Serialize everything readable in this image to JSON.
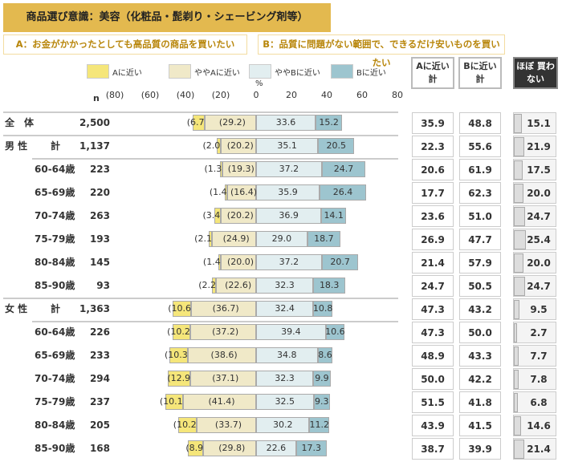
{
  "title": "商品選び意識：美容（化粧品・髭剃り・シェービング剤等）",
  "definition_a": "A：お金がかかったとしても高品質の商品を買いたい",
  "definition_b": "B：品質に問題がない範囲で、できるだけ安いものを買いたい",
  "columns": {
    "a_total": "Aに近い 計",
    "b_total": "Bに近い 計",
    "rarely_buy": "ほぼ 買わない"
  },
  "n_label": "n",
  "unit_label": "%",
  "colors": {
    "a": "#f5e67a",
    "slightly_a": "#f0e9c8",
    "slightly_b": "#e2eef0",
    "b": "#9dc5cf",
    "rarely": "#dddddd",
    "title_bg": "#e3b94f"
  },
  "chart_data": {
    "type": "bar",
    "orientation": "horizontal-diverging-stacked",
    "xlim": [
      -80,
      80
    ],
    "xticks": [
      "(80)",
      "(60)",
      "(40)",
      "(20)",
      "0",
      "20",
      "40",
      "60",
      "80"
    ],
    "legend": [
      "Aに近い",
      "ややAに近い",
      "ややBに近い",
      "Bに近い"
    ],
    "legend_placement": "top",
    "rows": [
      {
        "group": "全　体",
        "label": "",
        "n": "2,500",
        "a": 6.7,
        "sa": 29.2,
        "sb": 33.6,
        "b": 15.2,
        "a_total": "35.9",
        "b_total": "48.8",
        "rarely": 15.1
      },
      {
        "group": "男 性",
        "label": "計",
        "n": "1,137",
        "a": 2.0,
        "sa": 20.2,
        "sb": 35.1,
        "b": 20.5,
        "a_total": "22.3",
        "b_total": "55.6",
        "rarely": 21.9
      },
      {
        "group": "",
        "label": "60-64歳",
        "n": "223",
        "a": 1.3,
        "sa": 19.3,
        "sb": 37.2,
        "b": 24.7,
        "a_total": "20.6",
        "b_total": "61.9",
        "rarely": 17.5
      },
      {
        "group": "",
        "label": "65-69歳",
        "n": "220",
        "a": 1.4,
        "sa": 16.4,
        "sb": 35.9,
        "b": 26.4,
        "a_total": "17.7",
        "b_total": "62.3",
        "rarely": 20.0
      },
      {
        "group": "",
        "label": "70-74歳",
        "n": "263",
        "a": 3.4,
        "sa": 20.2,
        "sb": 36.9,
        "b": 14.1,
        "a_total": "23.6",
        "b_total": "51.0",
        "rarely": 24.7
      },
      {
        "group": "",
        "label": "75-79歳",
        "n": "193",
        "a": 2.1,
        "sa": 24.9,
        "sb": 29.0,
        "b": 18.7,
        "a_total": "26.9",
        "b_total": "47.7",
        "rarely": 25.4
      },
      {
        "group": "",
        "label": "80-84歳",
        "n": "145",
        "a": 1.4,
        "sa": 20.0,
        "sb": 37.2,
        "b": 20.7,
        "a_total": "21.4",
        "b_total": "57.9",
        "rarely": 20.0
      },
      {
        "group": "",
        "label": "85-90歳",
        "n": "93",
        "a": 2.2,
        "sa": 22.6,
        "sb": 32.3,
        "b": 18.3,
        "a_total": "24.7",
        "b_total": "50.5",
        "rarely": 24.7
      },
      {
        "group": "女 性",
        "label": "計",
        "n": "1,363",
        "a": 10.6,
        "sa": 36.7,
        "sb": 32.4,
        "b": 10.8,
        "a_total": "47.3",
        "b_total": "43.2",
        "rarely": 9.5
      },
      {
        "group": "",
        "label": "60-64歳",
        "n": "226",
        "a": 10.2,
        "sa": 37.2,
        "sb": 39.4,
        "b": 10.6,
        "a_total": "47.3",
        "b_total": "50.0",
        "rarely": 2.7
      },
      {
        "group": "",
        "label": "65-69歳",
        "n": "233",
        "a": 10.3,
        "sa": 38.6,
        "sb": 34.8,
        "b": 8.6,
        "a_total": "48.9",
        "b_total": "43.3",
        "rarely": 7.7
      },
      {
        "group": "",
        "label": "70-74歳",
        "n": "294",
        "a": 12.9,
        "sa": 37.1,
        "sb": 32.3,
        "b": 9.9,
        "a_total": "50.0",
        "b_total": "42.2",
        "rarely": 7.8
      },
      {
        "group": "",
        "label": "75-79歳",
        "n": "237",
        "a": 10.1,
        "sa": 41.4,
        "sb": 32.5,
        "b": 9.3,
        "a_total": "51.5",
        "b_total": "41.8",
        "rarely": 6.8
      },
      {
        "group": "",
        "label": "80-84歳",
        "n": "205",
        "a": 10.2,
        "sa": 33.7,
        "sb": 30.2,
        "b": 11.2,
        "a_total": "43.9",
        "b_total": "41.5",
        "rarely": 14.6
      },
      {
        "group": "",
        "label": "85-90歳",
        "n": "168",
        "a": 8.9,
        "sa": 29.8,
        "sb": 22.6,
        "b": 17.3,
        "a_total": "38.7",
        "b_total": "39.9",
        "rarely": 21.4
      }
    ]
  }
}
